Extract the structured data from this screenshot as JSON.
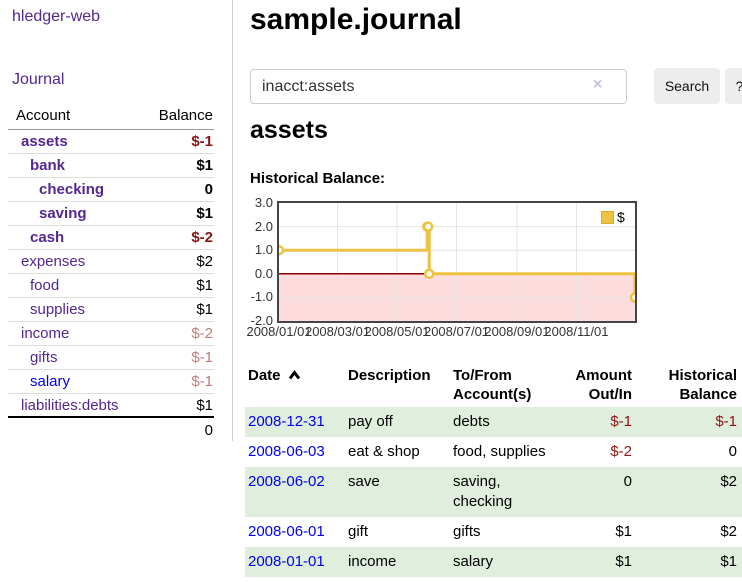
{
  "colors": {
    "link_purple": "#54278f",
    "link_blue": "#0000ee",
    "negative_strong": "#8b1414",
    "negative_soft": "#bd7c7c",
    "row_green": "#dfeedd",
    "series_yellow": "#edc240",
    "zero_line_red": "#8b0000",
    "negative_region_pink": "#fcdcdc",
    "grid_gray": "#e4e4e4",
    "plot_border": "#444444"
  },
  "sidebar": {
    "app_title": "hledger-web",
    "nav_journal": "Journal",
    "accounts_header": {
      "account": "Account",
      "balance": "Balance"
    },
    "accounts": [
      {
        "name": "assets",
        "balance": "$-1",
        "level": 1,
        "bold": true,
        "neg": "strong"
      },
      {
        "name": "bank",
        "balance": "$1",
        "level": 2,
        "bold": true
      },
      {
        "name": "checking",
        "balance": "0",
        "level": 3,
        "bold": true
      },
      {
        "name": "saving",
        "balance": "$1",
        "level": 3,
        "bold": true
      },
      {
        "name": "cash",
        "balance": "$-2",
        "level": 2,
        "bold": true,
        "neg": "strong"
      },
      {
        "name": "expenses",
        "balance": "$2",
        "level": 1
      },
      {
        "name": "food",
        "balance": "$1",
        "level": 2
      },
      {
        "name": "supplies",
        "balance": "$1",
        "level": 2
      },
      {
        "name": "income",
        "balance": "$-2",
        "level": 1,
        "neg": "soft"
      },
      {
        "name": "gifts",
        "balance": "$-1",
        "level": 2,
        "neg": "soft"
      },
      {
        "name": "salary",
        "balance": "$-1",
        "level": 2,
        "neg": "soft",
        "link": "blue"
      },
      {
        "name": "liabilities:debts",
        "balance": "$1",
        "level": 1
      }
    ],
    "total": "0"
  },
  "main": {
    "title": "sample.journal",
    "search": {
      "value": "inacct:assets",
      "clear_icon": "×",
      "button_label": "Search",
      "help_label": "?"
    },
    "account_heading": "assets"
  },
  "chart_data": {
    "type": "line",
    "step": true,
    "title": "Historical Balance:",
    "series": [
      {
        "name": "$",
        "color": "#edc240",
        "points": [
          [
            "2008-01-01",
            1
          ],
          [
            "2008-06-01",
            2
          ],
          [
            "2008-06-02",
            2
          ],
          [
            "2008-06-03",
            0
          ],
          [
            "2008-12-31",
            -1
          ]
        ]
      }
    ],
    "x_range": [
      "2008-01-01",
      "2008-12-31"
    ],
    "x_ticks": [
      {
        "date": "2008-01-01",
        "label": "2008/01/01"
      },
      {
        "date": "2008-03-01",
        "label": "2008/03/01"
      },
      {
        "date": "2008-05-01",
        "label": "2008/05/01"
      },
      {
        "date": "2008-07-01",
        "label": "2008/07/01"
      },
      {
        "date": "2008-09-01",
        "label": "2008/09/01"
      },
      {
        "date": "2008-11-01",
        "label": "2008/11/01"
      }
    ],
    "ylim": [
      -2,
      3
    ],
    "y_ticks": [
      3.0,
      2.0,
      1.0,
      0.0,
      -1.0,
      -2.0
    ],
    "grid": true,
    "legend_position": "top-right",
    "zero_line": true,
    "negative_region_shaded": true
  },
  "transactions": {
    "headers": [
      {
        "line1": "Date",
        "sorted": true
      },
      {
        "line1": "Description"
      },
      {
        "line1": "To/From",
        "line2": "Account(s)"
      },
      {
        "line1": "Amount",
        "line2": "Out/In",
        "align": "right"
      },
      {
        "line1": "Historical",
        "line2": "Balance",
        "align": "right"
      }
    ],
    "rows": [
      {
        "date": "2008-12-31",
        "description": "pay off",
        "accounts": "debts",
        "amount": "$-1",
        "amount_negative": true,
        "balance": "$-1",
        "balance_negative": true
      },
      {
        "date": "2008-06-03",
        "description": "eat & shop",
        "accounts": "food, supplies",
        "amount": "$-2",
        "amount_negative": true,
        "balance": "0",
        "balance_negative": false
      },
      {
        "date": "2008-06-02",
        "description": "save",
        "accounts": "saving, checking",
        "amount": "0",
        "amount_negative": false,
        "balance": "$2",
        "balance_negative": false
      },
      {
        "date": "2008-06-01",
        "description": "gift",
        "accounts": "gifts",
        "amount": "$1",
        "amount_negative": false,
        "balance": "$2",
        "balance_negative": false
      },
      {
        "date": "2008-01-01",
        "description": "income",
        "accounts": "salary",
        "amount": "$1",
        "amount_negative": false,
        "balance": "$1",
        "balance_negative": false
      }
    ]
  }
}
